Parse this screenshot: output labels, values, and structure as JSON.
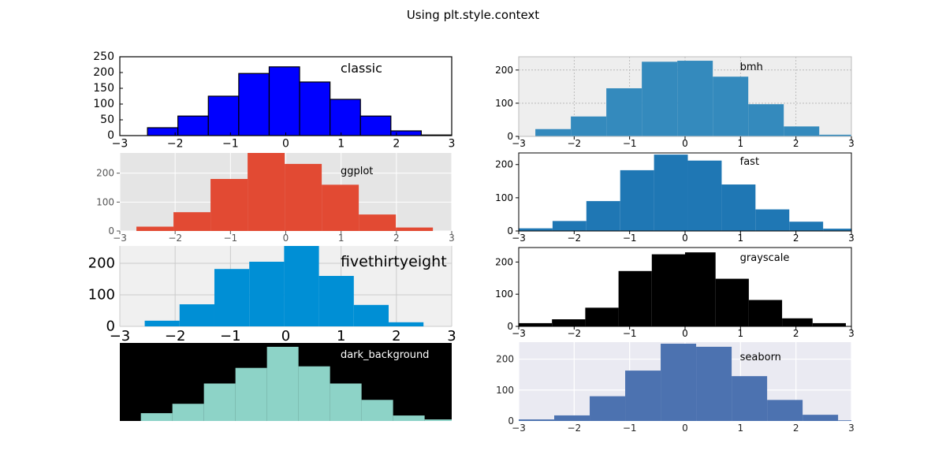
{
  "figure": {
    "title": "Using plt.style.context"
  },
  "chart_data": [
    {
      "type": "bar",
      "style": "classic",
      "label": "classic",
      "bin_edges": [
        -2.5,
        -1.95,
        -1.4,
        -0.85,
        -0.3,
        0.25,
        0.8,
        1.35,
        1.9,
        2.45,
        3.0
      ],
      "values": [
        25,
        62,
        125,
        197,
        218,
        170,
        115,
        62,
        15,
        2
      ],
      "xlim": [
        -3,
        3
      ],
      "ylim": [
        0,
        250
      ],
      "xticks": [
        "−3",
        "−2",
        "−1",
        "0",
        "1",
        "2",
        "3"
      ],
      "yticks": [
        "0",
        "50",
        "100",
        "150",
        "200",
        "250"
      ],
      "bar_color": "#0000ff",
      "edge_color": "#000000",
      "background": "#ffffff"
    },
    {
      "type": "bar",
      "style": "bmh",
      "label": "bmh",
      "bin_edges": [
        -2.7,
        -2.06,
        -1.42,
        -0.78,
        -0.14,
        0.5,
        1.14,
        1.78,
        2.42,
        3.06,
        3.7
      ],
      "values": [
        22,
        60,
        145,
        225,
        228,
        180,
        97,
        30,
        5,
        1
      ],
      "xlim": [
        -3,
        3
      ],
      "ylim": [
        0,
        240
      ],
      "xticks": [
        "−3",
        "−2",
        "−1",
        "0",
        "1",
        "2",
        "3"
      ],
      "yticks": [
        "0",
        "100",
        "200"
      ],
      "bar_color": "#348abd",
      "background": "#eeeeee",
      "grid": true
    },
    {
      "type": "bar",
      "style": "ggplot",
      "label": "ggplot",
      "bin_edges": [
        -2.7,
        -2.03,
        -1.36,
        -0.69,
        -0.02,
        0.65,
        1.32,
        1.99,
        2.66
      ],
      "values": [
        15,
        65,
        180,
        270,
        232,
        160,
        57,
        12
      ],
      "xlim": [
        -3,
        3
      ],
      "ylim": [
        0,
        270
      ],
      "xticks": [
        "−3",
        "−2",
        "−1",
        "0",
        "1",
        "2",
        "3"
      ],
      "yticks": [
        "0",
        "100",
        "200"
      ],
      "bar_color": "#e24a33",
      "background": "#e5e5e5",
      "grid": true
    },
    {
      "type": "bar",
      "style": "fast",
      "label": "fast",
      "bin_edges": [
        -3.0,
        -2.39,
        -1.78,
        -1.17,
        -0.56,
        0.05,
        0.66,
        1.27,
        1.88,
        2.49,
        3.1
      ],
      "values": [
        8,
        30,
        90,
        183,
        230,
        212,
        140,
        65,
        28,
        7
      ],
      "xlim": [
        -3,
        3
      ],
      "ylim": [
        0,
        235
      ],
      "xticks": [
        "−3",
        "−2",
        "−1",
        "0",
        "1",
        "2",
        "3"
      ],
      "yticks": [
        "0",
        "100",
        "200"
      ],
      "bar_color": "#1f77b4",
      "background": "#ffffff"
    },
    {
      "type": "bar",
      "style": "fivethirtyeight",
      "label": "fivethirtyeight",
      "bin_edges": [
        -2.55,
        -1.92,
        -1.29,
        -0.66,
        -0.03,
        0.6,
        1.23,
        1.86,
        2.49
      ],
      "values": [
        18,
        70,
        182,
        205,
        255,
        160,
        68,
        13
      ],
      "xlim": [
        -3,
        3
      ],
      "ylim": [
        0,
        255
      ],
      "xticks": [
        "−3",
        "−2",
        "−1",
        "0",
        "1",
        "2",
        "3"
      ],
      "yticks": [
        "0",
        "100",
        "200"
      ],
      "bar_color": "#008fd5",
      "background": "#f0f0f0",
      "grid": true
    },
    {
      "type": "bar",
      "style": "grayscale",
      "label": "grayscale",
      "bin_edges": [
        -3.0,
        -2.4,
        -1.8,
        -1.2,
        -0.6,
        0.0,
        0.55,
        1.15,
        1.75,
        2.3,
        2.9
      ],
      "values": [
        10,
        22,
        58,
        172,
        224,
        230,
        148,
        82,
        25,
        10
      ],
      "xlim": [
        -3,
        3
      ],
      "ylim": [
        0,
        245
      ],
      "xticks": [
        "−3",
        "−2",
        "−1",
        "0",
        "1",
        "2",
        "3"
      ],
      "yticks": [
        "0",
        "100",
        "200"
      ],
      "bar_color": "#000000",
      "background": "#ffffff"
    },
    {
      "type": "bar",
      "style": "dark_background",
      "label": "dark_background",
      "bin_edges": [
        -2.62,
        -2.05,
        -1.48,
        -0.91,
        -0.34,
        0.23,
        0.8,
        1.37,
        1.94,
        2.51,
        3.08
      ],
      "values": [
        10,
        22,
        48,
        68,
        95,
        70,
        48,
        27,
        7,
        2
      ],
      "xlim": [
        -3,
        3
      ],
      "ylim": [
        0,
        100
      ],
      "bar_color": "#8dd3c7",
      "background": "#000000",
      "text_color": "#ffffff"
    },
    {
      "type": "bar",
      "style": "seaborn",
      "label": "seaborn",
      "bin_edges": [
        -3.0,
        -2.36,
        -1.72,
        -1.08,
        -0.44,
        0.2,
        0.84,
        1.48,
        2.12,
        2.76,
        3.4
      ],
      "values": [
        5,
        18,
        80,
        163,
        250,
        240,
        145,
        68,
        20,
        2
      ],
      "xlim": [
        -3,
        3
      ],
      "ylim": [
        0,
        255
      ],
      "xticks": [
        "−3",
        "−2",
        "−1",
        "0",
        "1",
        "2",
        "3"
      ],
      "yticks": [
        "0",
        "100",
        "200"
      ],
      "bar_color": "#4c72b0",
      "background": "#eaeaf2",
      "grid": true
    }
  ]
}
